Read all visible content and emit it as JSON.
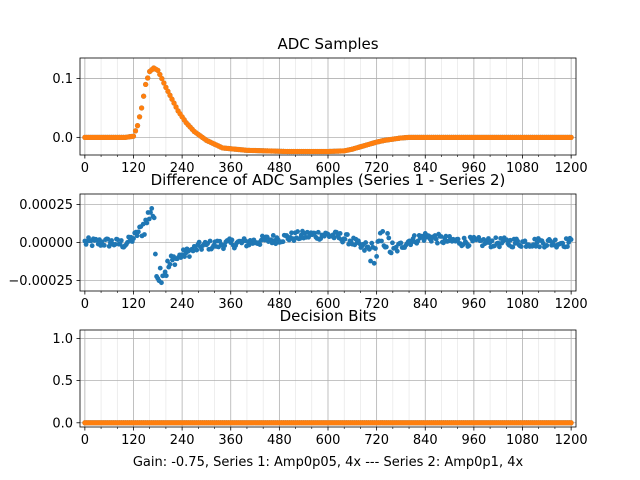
{
  "figure_caption": "Gain: -0.75, Series 1: Amp0p05, 4x --- Series 2: Amp0p1, 4x",
  "colors": {
    "series1": "#1f77b4",
    "series2": "#ff7f0e",
    "grid": "#b0b0b0",
    "axes": "#000000"
  },
  "chart_data": [
    {
      "type": "scatter",
      "title": "ADC Samples",
      "xlabel": "",
      "ylabel": "",
      "xlim": [
        -12,
        1212
      ],
      "ylim": [
        -0.03,
        0.135
      ],
      "xticks": [
        0,
        120,
        240,
        360,
        480,
        600,
        720,
        840,
        960,
        1080,
        1200
      ],
      "xtick_labels": [
        "0",
        "120",
        "240",
        "360",
        "480",
        "600",
        "720",
        "840",
        "960",
        "1080",
        "1200"
      ],
      "yticks": [
        0.0,
        0.1
      ],
      "ytick_labels": [
        "0.0",
        "0.1"
      ],
      "grid": true,
      "series": [
        {
          "name": "Series 1",
          "color": "#1f77b4",
          "x": [
            0,
            100,
            120,
            130,
            140,
            150,
            160,
            170,
            180,
            190,
            200,
            215,
            230,
            250,
            270,
            300,
            340,
            400,
            500,
            600,
            640,
            660,
            680,
            700,
            720,
            740,
            760,
            780,
            800,
            900,
            1000,
            1100,
            1200
          ],
          "y": [
            0,
            0,
            0.002,
            0.02,
            0.05,
            0.09,
            0.112,
            0.118,
            0.114,
            0.1,
            0.085,
            0.065,
            0.045,
            0.025,
            0.01,
            -0.005,
            -0.018,
            -0.022,
            -0.024,
            -0.024,
            -0.023,
            -0.02,
            -0.016,
            -0.012,
            -0.008,
            -0.005,
            -0.003,
            -0.001,
            0,
            0,
            0,
            0,
            0
          ]
        },
        {
          "name": "Series 2",
          "color": "#ff7f0e",
          "x": [
            0,
            100,
            120,
            130,
            140,
            150,
            160,
            170,
            180,
            190,
            200,
            215,
            230,
            250,
            270,
            300,
            340,
            400,
            500,
            600,
            640,
            660,
            680,
            700,
            720,
            740,
            760,
            780,
            800,
            900,
            1000,
            1100,
            1200
          ],
          "y": [
            0,
            0,
            0.002,
            0.02,
            0.05,
            0.09,
            0.112,
            0.118,
            0.114,
            0.1,
            0.085,
            0.065,
            0.045,
            0.025,
            0.01,
            -0.005,
            -0.018,
            -0.022,
            -0.024,
            -0.024,
            -0.023,
            -0.02,
            -0.016,
            -0.012,
            -0.008,
            -0.005,
            -0.003,
            -0.001,
            0,
            0,
            0,
            0,
            0
          ]
        }
      ]
    },
    {
      "type": "scatter",
      "title": "Difference of ADC Samples (Series 1 - Series 2)",
      "xlabel": "",
      "ylabel": "",
      "xlim": [
        -12,
        1212
      ],
      "ylim": [
        -0.00032,
        0.00032
      ],
      "xticks": [
        0,
        120,
        240,
        360,
        480,
        600,
        720,
        840,
        960,
        1080,
        1200
      ],
      "xtick_labels": [
        "0",
        "120",
        "240",
        "360",
        "480",
        "600",
        "720",
        "840",
        "960",
        "1080",
        "1200"
      ],
      "yticks": [
        0.00025,
        0.0,
        -0.00025
      ],
      "ytick_labels": [
        "0.00025",
        "0.00000",
        "−0.00025"
      ],
      "grid": true,
      "series": [
        {
          "name": "Series 1 - Series 2",
          "color": "#1f77b4",
          "x": [
            0,
            60,
            100,
            120,
            130,
            140,
            150,
            160,
            165,
            170,
            175,
            180,
            200,
            220,
            240,
            260,
            280,
            300,
            340,
            400,
            460,
            520,
            560,
            600,
            640,
            660,
            680,
            700,
            710,
            720,
            730,
            740,
            760,
            780,
            800,
            840,
            900,
            1000,
            1100,
            1200
          ],
          "y": [
            0.0,
            0.0,
            -1e-05,
            3e-05,
            6e-05,
            0.0001,
            0.00012,
            0.0002,
            0.00024,
            0.00015,
            -0.00012,
            -0.0002,
            -0.00018,
            -0.00012,
            -8e-05,
            -6e-05,
            -3e-05,
            -2e-05,
            -1e-05,
            0.0,
            2e-05,
            4e-05,
            5e-05,
            5e-05,
            3e-05,
            1e-05,
            -3e-05,
            -5e-05,
            -7e-05,
            -6e-05,
            0.0,
            3e-05,
            -6e-05,
            -2e-05,
            1e-05,
            4e-05,
            1e-05,
            0.0,
            0.0,
            0.0
          ]
        }
      ]
    },
    {
      "type": "scatter",
      "title": "Decision Bits",
      "xlabel": "Gain: -0.75, Series 1: Amp0p05, 4x --- Series 2: Amp0p1, 4x",
      "ylabel": "",
      "xlim": [
        -12,
        1212
      ],
      "ylim": [
        -0.05,
        1.1
      ],
      "xticks": [
        0,
        120,
        240,
        360,
        480,
        600,
        720,
        840,
        960,
        1080,
        1200
      ],
      "xtick_labels": [
        "0",
        "120",
        "240",
        "360",
        "480",
        "600",
        "720",
        "840",
        "960",
        "1080",
        "1200"
      ],
      "yticks": [
        0.0,
        0.5,
        1.0
      ],
      "ytick_labels": [
        "0.0",
        "0.5",
        "1.0"
      ],
      "grid": true,
      "series": [
        {
          "name": "Series 1",
          "color": "#1f77b4",
          "x": [
            0,
            1200
          ],
          "y": [
            0,
            0
          ]
        },
        {
          "name": "Series 2",
          "color": "#ff7f0e",
          "x": [
            0,
            1200
          ],
          "y": [
            0,
            0
          ]
        }
      ]
    }
  ]
}
